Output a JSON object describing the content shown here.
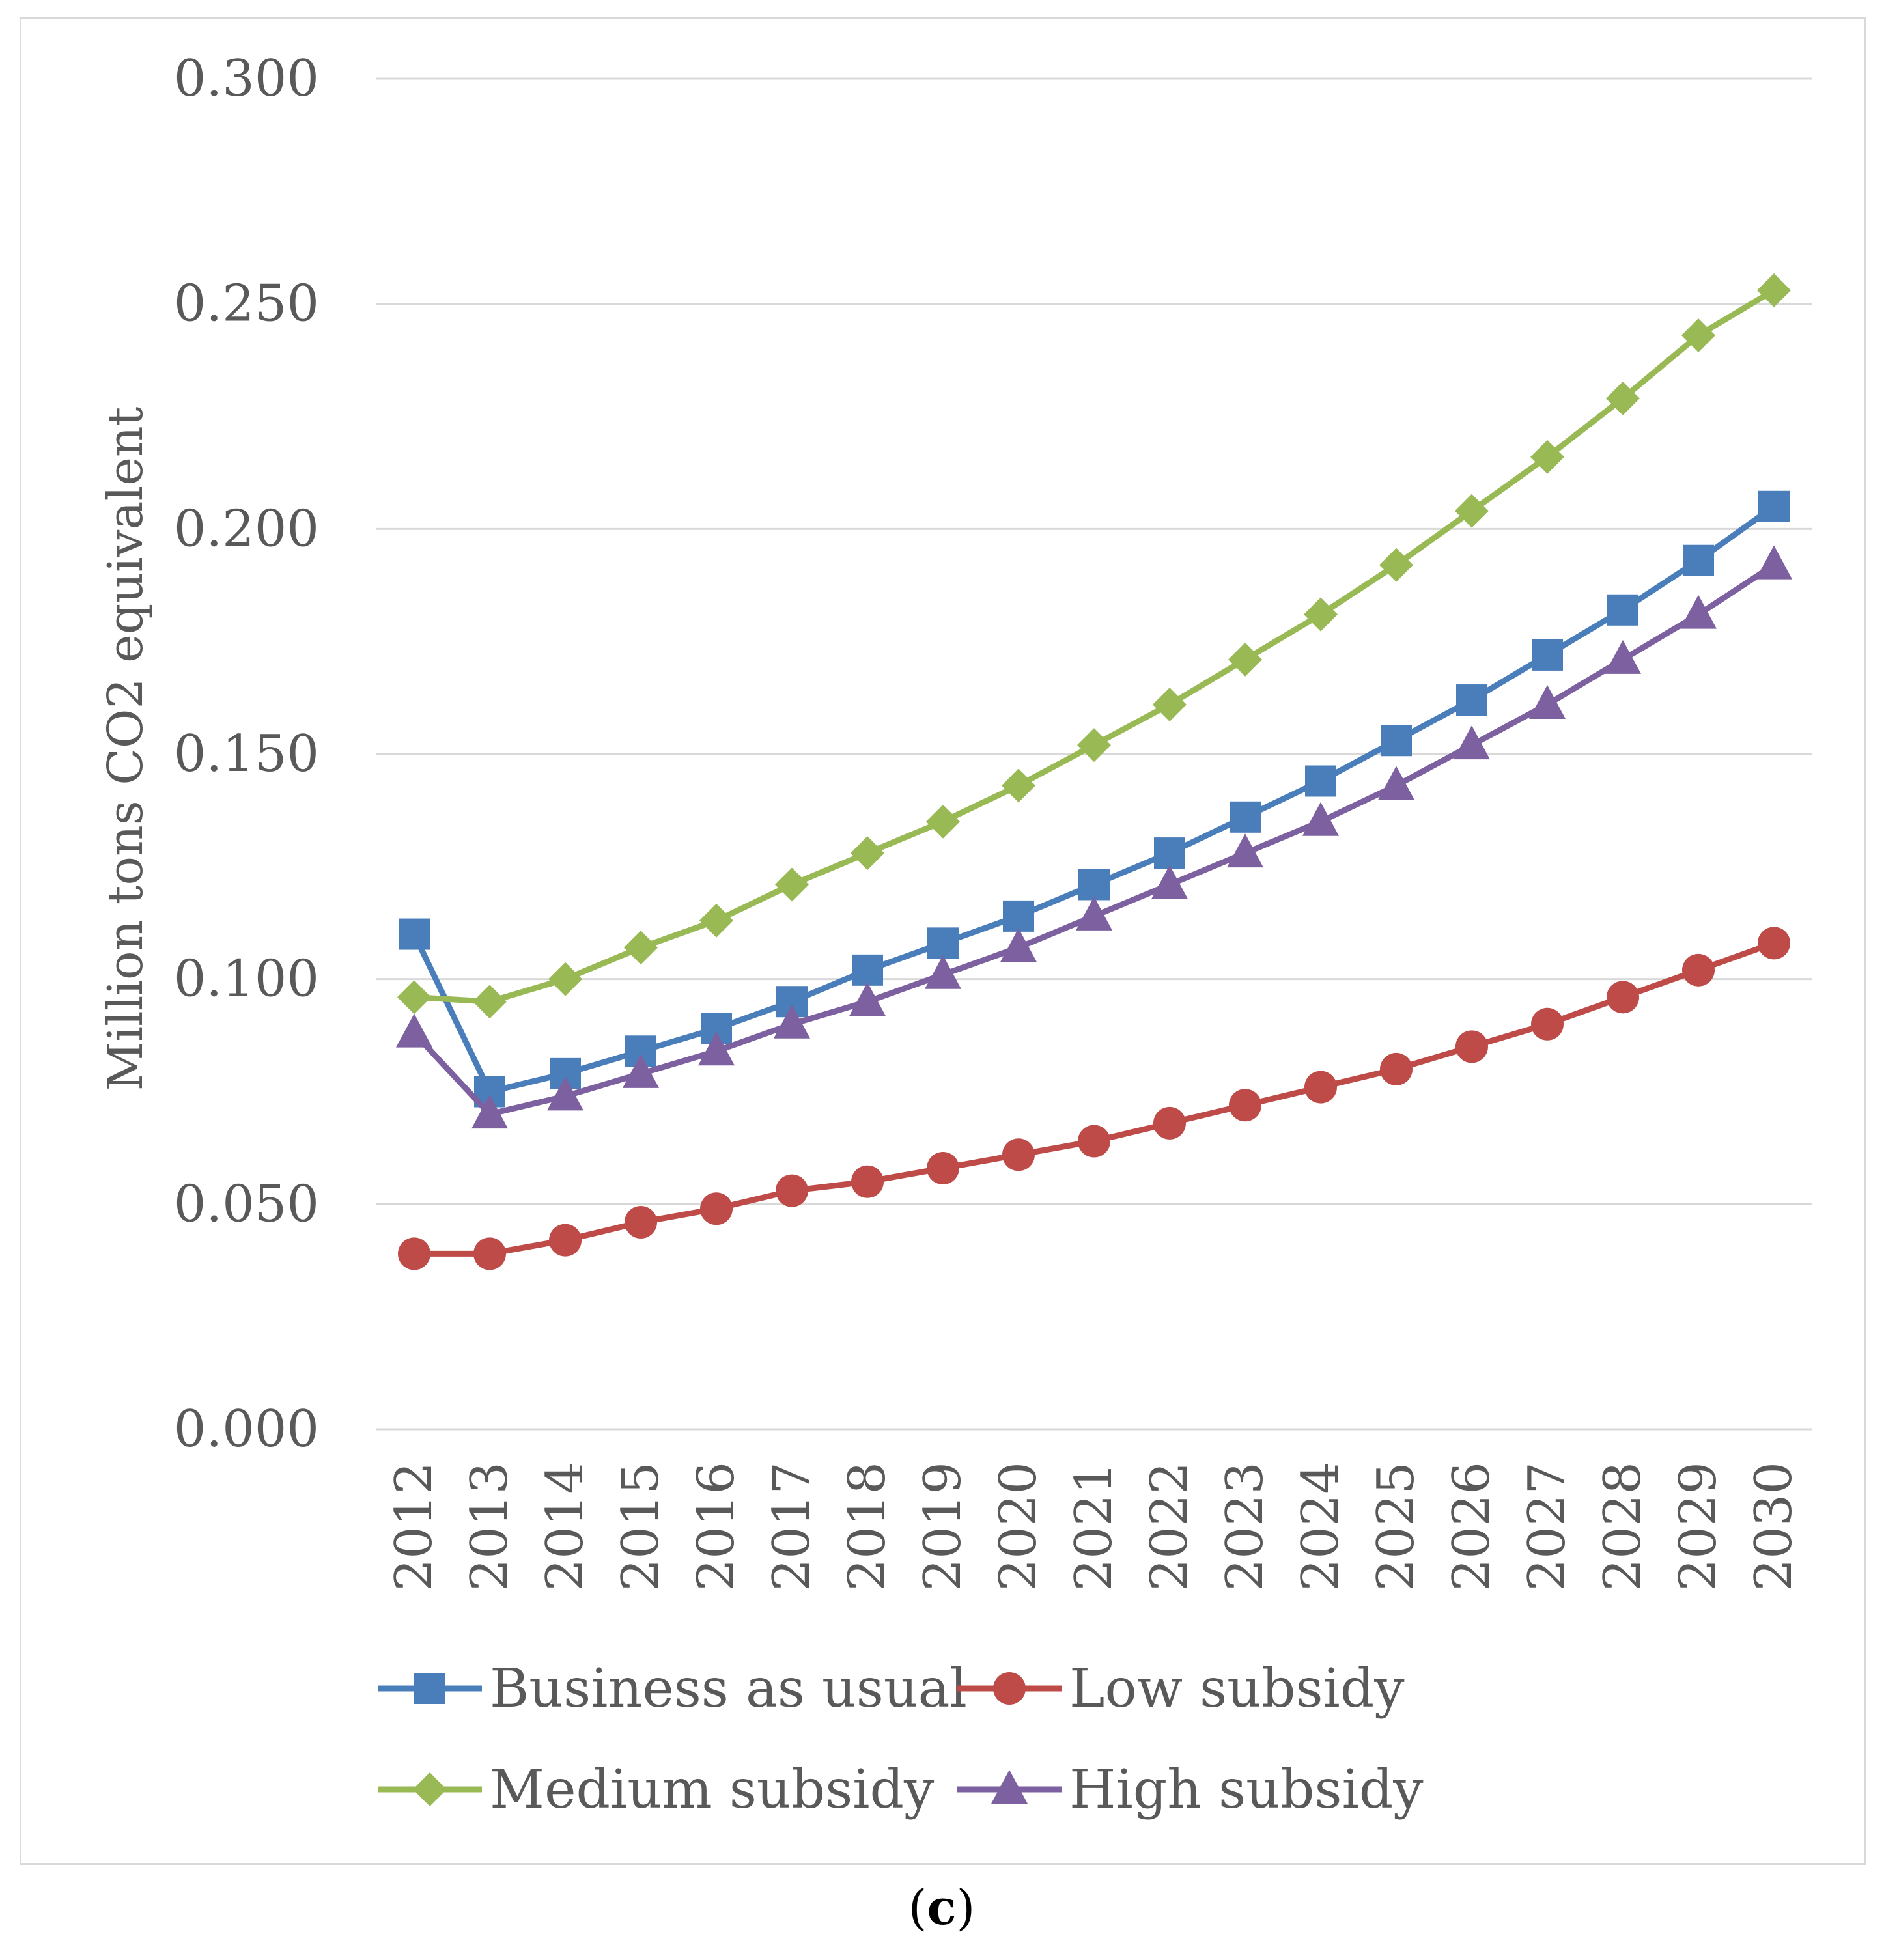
{
  "chart_data": {
    "type": "line",
    "title": "",
    "xlabel": "",
    "ylabel": "Million tons CO2 equivalent",
    "ylim": [
      0,
      0.3
    ],
    "yticks": [
      "0.000",
      "0.050",
      "0.100",
      "0.150",
      "0.200",
      "0.250",
      "0.300"
    ],
    "grid": true,
    "legend_position": "bottom",
    "categories": [
      "2012",
      "2013",
      "2014",
      "2015",
      "2016",
      "2017",
      "2018",
      "2019",
      "2020",
      "2021",
      "2022",
      "2023",
      "2024",
      "2025",
      "2026",
      "2027",
      "2028",
      "2029",
      "2030"
    ],
    "series": [
      {
        "name": "Business as usual",
        "color": "#4a7ebb",
        "marker": "square",
        "values": [
          0.11,
          0.075,
          0.079,
          0.084,
          0.089,
          0.095,
          0.102,
          0.108,
          0.114,
          0.121,
          0.128,
          0.136,
          0.144,
          0.153,
          0.162,
          0.172,
          0.182,
          0.193,
          0.205
        ]
      },
      {
        "name": "Low subsidy",
        "color": "#be4b48",
        "marker": "circle",
        "values": [
          0.039,
          0.039,
          0.042,
          0.046,
          0.049,
          0.053,
          0.055,
          0.058,
          0.061,
          0.064,
          0.068,
          0.072,
          0.076,
          0.08,
          0.085,
          0.09,
          0.096,
          0.102,
          0.108
        ]
      },
      {
        "name": "Medium subsidy",
        "color": "#98b954",
        "marker": "diamond",
        "values": [
          0.096,
          0.095,
          0.1,
          0.107,
          0.113,
          0.121,
          0.128,
          0.135,
          0.143,
          0.152,
          0.161,
          0.171,
          0.181,
          0.192,
          0.204,
          0.216,
          0.229,
          0.243,
          0.253
        ]
      },
      {
        "name": "High subsidy",
        "color": "#7d60a0",
        "marker": "triangle",
        "values": [
          0.088,
          0.07,
          0.074,
          0.079,
          0.084,
          0.09,
          0.095,
          0.101,
          0.107,
          0.114,
          0.121,
          0.128,
          0.135,
          0.143,
          0.152,
          0.161,
          0.171,
          0.181,
          0.192
        ]
      }
    ]
  },
  "caption": {
    "open": "(",
    "letter": "c",
    "close": ")"
  }
}
